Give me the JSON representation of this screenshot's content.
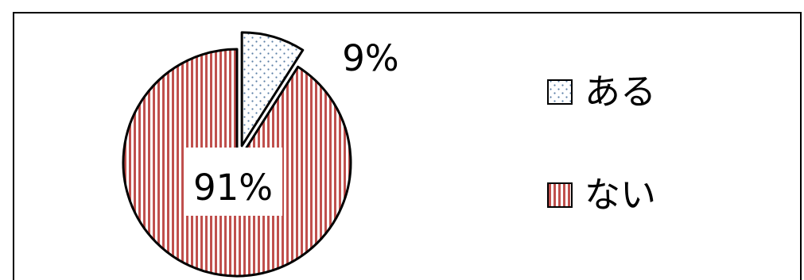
{
  "chart_data": {
    "type": "pie",
    "exploded": true,
    "categories": [
      "ある",
      "ない"
    ],
    "values": [
      9,
      91
    ],
    "data_labels": [
      "9%",
      "91%"
    ],
    "legend": {
      "placement": "right",
      "entries": [
        "ある",
        "ない"
      ]
    },
    "slice_styles": [
      {
        "pattern": "dots",
        "color": "#5b7fa6"
      },
      {
        "pattern": "vertical-stripes",
        "color": "#c0504d"
      }
    ],
    "frame_color": "#000000"
  }
}
